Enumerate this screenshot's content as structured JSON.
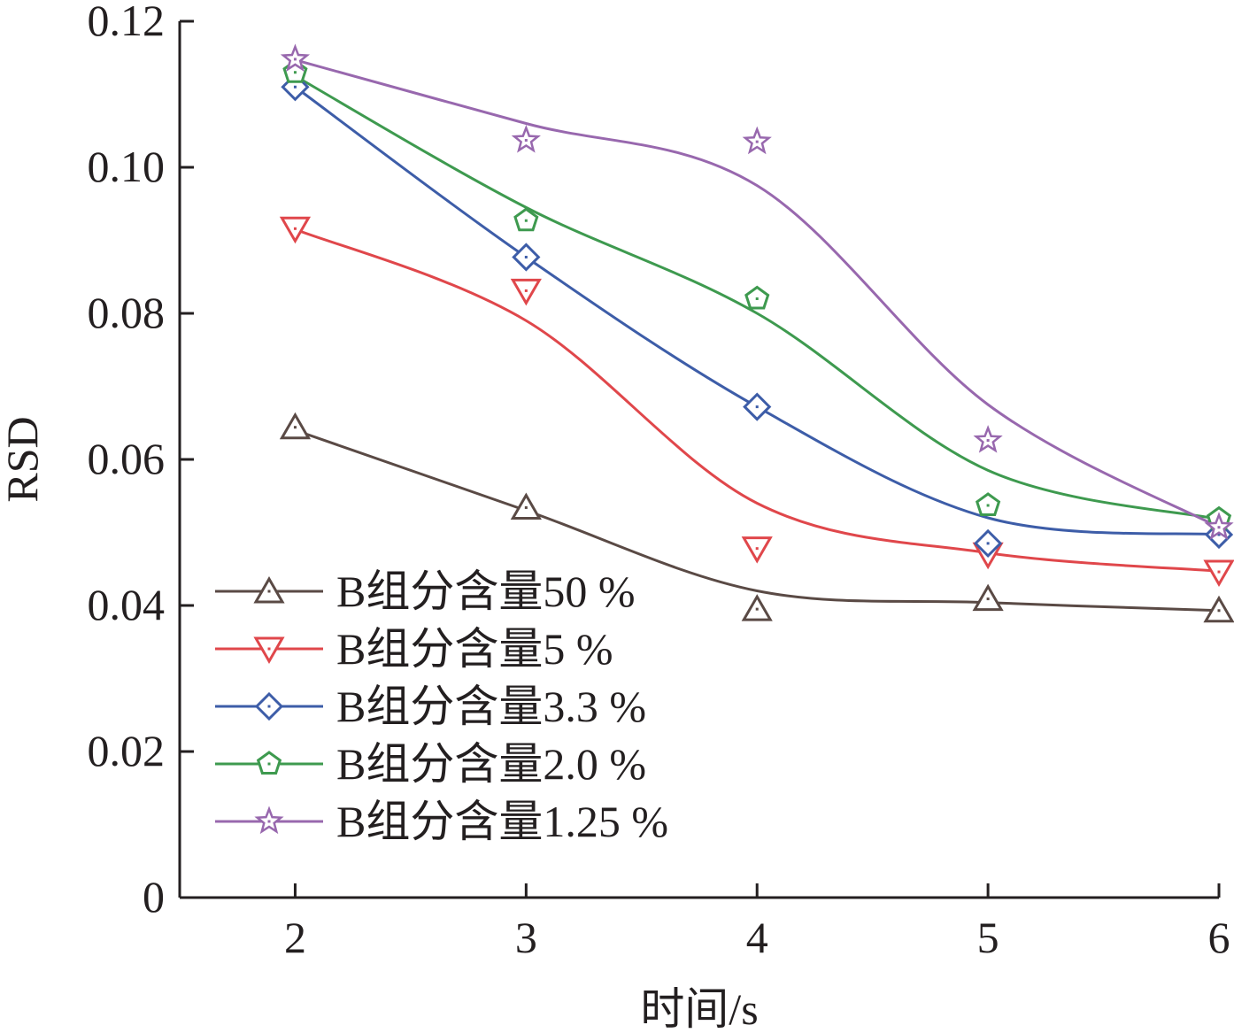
{
  "chart_data": {
    "type": "line",
    "xlabel": "时间/s",
    "ylabel": "RSD",
    "x": [
      2,
      3,
      4,
      5,
      6
    ],
    "xlim": [
      1.5,
      6
    ],
    "ylim": [
      0,
      0.12
    ],
    "x_ticks": [
      "2",
      "3",
      "4",
      "5",
      "6"
    ],
    "y_ticks": [
      "0",
      "0.02",
      "0.04",
      "0.06",
      "0.08",
      "0.10",
      "0.12"
    ],
    "y_tick_values": [
      0,
      0.02,
      0.04,
      0.06,
      0.08,
      0.1,
      0.12
    ],
    "grid": false,
    "legend_position": "bottom-left",
    "series": [
      {
        "name": "B组分含量50 %",
        "marker": "triangle-up",
        "color": "#5a4a45",
        "points": [
          0.0644,
          0.0534,
          0.0395,
          0.0409,
          0.0393
        ],
        "curve": [
          0.064,
          0.053,
          0.042,
          0.0404,
          0.0393
        ]
      },
      {
        "name": "B组分含量5 %",
        "marker": "triangle-down",
        "color": "#e0474b",
        "points": [
          0.0916,
          0.0831,
          0.0478,
          0.047,
          0.0446
        ],
        "curve": [
          0.0915,
          0.079,
          0.054,
          0.0472,
          0.0447
        ]
      },
      {
        "name": "B组分含量3.3 %",
        "marker": "diamond",
        "color": "#3d5da8",
        "points": [
          0.111,
          0.0877,
          0.0672,
          0.0485,
          0.0497
        ],
        "curve": [
          0.111,
          0.0877,
          0.0672,
          0.052,
          0.0497
        ]
      },
      {
        "name": "B组分含量2.0 %",
        "marker": "pentagon",
        "color": "#3e9a4f",
        "points": [
          0.113,
          0.0927,
          0.082,
          0.0537,
          0.0518
        ],
        "curve": [
          0.1125,
          0.0945,
          0.08,
          0.0585,
          0.0518
        ]
      },
      {
        "name": "B组分含量1.25 %",
        "marker": "star",
        "color": "#9868ae",
        "points": [
          0.1148,
          0.1037,
          0.1035,
          0.0626,
          0.0507
        ],
        "curve": [
          0.1147,
          0.106,
          0.0975,
          0.0675,
          0.0507
        ]
      }
    ]
  }
}
